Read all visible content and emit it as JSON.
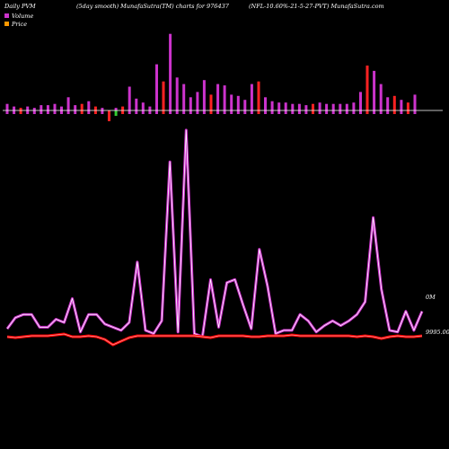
{
  "header": {
    "left": "Daily PVM",
    "center": "(5day smooth) MunafaSutra(TM) charts for 976437",
    "right": "(NFL-10.60%-21-5-27-PVT) MunafaSutra.com"
  },
  "legend": [
    {
      "label": "Volume",
      "color": "#cc33cc"
    },
    {
      "label": "Price",
      "color": "#ff9900"
    }
  ],
  "axis": {
    "volume_label": "0M",
    "price_label": "9995.00"
  },
  "colors": {
    "background": "#000000",
    "volume_up": "#cc33cc",
    "volume_down": "#ff2222",
    "volume_flat": "#33cc33",
    "baseline": "#ffffff",
    "volume_line_outer": "#cc33cc",
    "volume_line_inner": "#ffffff",
    "price_line_outer": "#ff0000",
    "price_line_inner": "#ff9999"
  },
  "chart_data": [
    {
      "type": "bar",
      "name": "Volume bars",
      "values": [
        5,
        3,
        2,
        3,
        2,
        4,
        4,
        5,
        3,
        10,
        4,
        5,
        7,
        3,
        2,
        -3,
        2,
        3,
        18,
        9,
        6,
        3,
        35,
        22,
        58,
        25,
        20,
        10,
        14,
        23,
        12,
        20,
        19,
        12,
        11,
        8,
        20,
        22,
        10,
        7,
        6,
        6,
        5,
        5,
        4,
        5,
        6,
        5,
        5,
        5,
        5,
        6,
        14,
        34,
        30,
        20,
        10,
        11,
        8,
        6,
        12
      ],
      "signs": [
        1,
        1,
        -1,
        1,
        1,
        1,
        1,
        1,
        1,
        1,
        1,
        -1,
        1,
        -1,
        1,
        -1,
        1,
        -1,
        1,
        1,
        1,
        1,
        1,
        -1,
        1,
        1,
        1,
        1,
        1,
        1,
        -1,
        1,
        1,
        1,
        1,
        1,
        1,
        -1,
        1,
        1,
        1,
        1,
        1,
        1,
        1,
        -1,
        1,
        1,
        1,
        1,
        1,
        1,
        1,
        -1,
        1,
        1,
        1,
        -1,
        1,
        -1,
        1
      ],
      "below": [
        0,
        0,
        0,
        0,
        0,
        0,
        0,
        0,
        0,
        0,
        0,
        0,
        0,
        0,
        0,
        12,
        6,
        4,
        0,
        0,
        0,
        0,
        0,
        0,
        0,
        0,
        0,
        0,
        0,
        0,
        0,
        0,
        0,
        0,
        0,
        0,
        0,
        0,
        0,
        0,
        0,
        0,
        0,
        0,
        0,
        0,
        0,
        0,
        0,
        0,
        0,
        0,
        0,
        0,
        0,
        0,
        0,
        0,
        0,
        0,
        0
      ]
    },
    {
      "type": "line",
      "name": "Volume",
      "values": [
        5,
        12,
        14,
        14,
        6,
        6,
        11,
        9,
        24,
        3,
        14,
        14,
        8,
        6,
        4,
        9,
        47,
        4,
        2,
        10,
        110,
        3,
        130,
        2,
        0,
        36,
        6,
        34,
        36,
        20,
        5,
        55,
        32,
        2,
        4,
        4,
        14,
        10,
        3,
        7,
        10,
        7,
        10,
        14,
        22,
        75,
        30,
        4,
        3,
        16,
        4,
        16
      ]
    },
    {
      "type": "line",
      "name": "Price",
      "values": [
        9995,
        9994,
        9995,
        9996,
        9996,
        9996,
        9997,
        9998,
        9995,
        9995,
        9996,
        9995,
        9992,
        9986,
        9990,
        9994,
        9996,
        9996,
        9996,
        9996,
        9996,
        9996,
        9996,
        9996,
        9995,
        9994,
        9996,
        9996,
        9996,
        9996,
        9995,
        9995,
        9996,
        9996,
        9996,
        9997,
        9996,
        9996,
        9996,
        9996,
        9996,
        9996,
        9996,
        9995,
        9996,
        9995,
        9993,
        9995,
        9996,
        9995,
        9995,
        9996
      ]
    }
  ]
}
